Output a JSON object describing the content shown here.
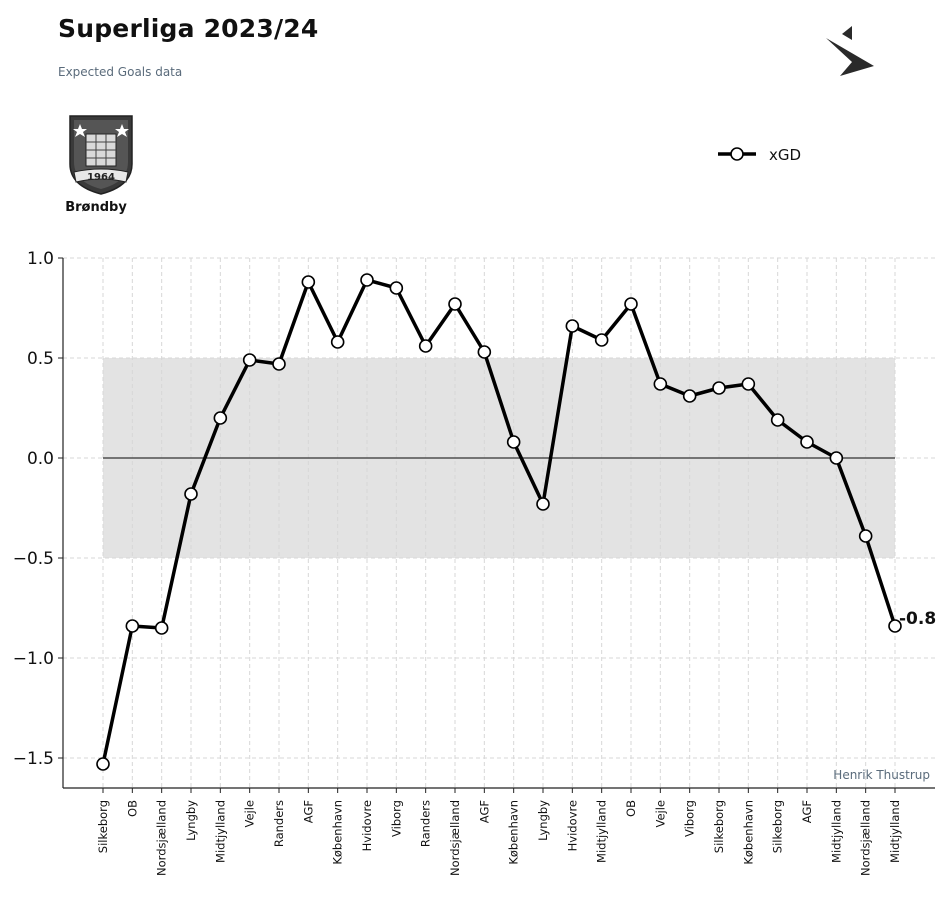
{
  "header": {
    "title": "Superliga 2023/24",
    "subtitle": "Expected Goals data"
  },
  "team": {
    "name": "Brøndby",
    "crest_year": "1964"
  },
  "credit": "Henrik Thustrup",
  "icons": {
    "brand": "arrow-logo-icon",
    "crest": "brondby-crest-icon"
  },
  "colors": {
    "line": "#000000",
    "band": "#e3e3e3",
    "grid": "#d7d7d7"
  },
  "chart_data": {
    "type": "line",
    "categories": [
      "Silkeborg",
      "OB",
      "Nordsjælland",
      "Lyngby",
      "Midtjylland",
      "Vejle",
      "Randers",
      "AGF",
      "København",
      "Hvidovre",
      "Viborg",
      "Randers",
      "Nordsjælland",
      "AGF",
      "København",
      "Lyngby",
      "Hvidovre",
      "Midtjylland",
      "OB",
      "Vejle",
      "Viborg",
      "Silkeborg",
      "København",
      "Silkeborg",
      "AGF",
      "Midtjylland",
      "Nordsjælland",
      "Midtjylland"
    ],
    "series": [
      {
        "name": "xGD",
        "values": [
          -1.53,
          -0.84,
          -0.85,
          -0.18,
          0.2,
          0.49,
          0.47,
          0.88,
          0.58,
          0.89,
          0.85,
          0.56,
          0.77,
          0.53,
          0.08,
          -0.23,
          0.66,
          0.59,
          0.77,
          0.37,
          0.31,
          0.35,
          0.37,
          0.19,
          0.08,
          0.0,
          -0.39,
          -0.84
        ]
      }
    ],
    "end_label": "-0.8",
    "yticks": [
      "1.0",
      "0.5",
      "0.0",
      "−0.5",
      "−1.0",
      "−1.5"
    ],
    "ytick_values": [
      1.0,
      0.5,
      0.0,
      -0.5,
      -1.0,
      -1.5
    ],
    "ylim": [
      -1.65,
      1.0
    ],
    "band": [
      -0.5,
      0.5
    ],
    "grid": true,
    "legend": "top-right"
  }
}
